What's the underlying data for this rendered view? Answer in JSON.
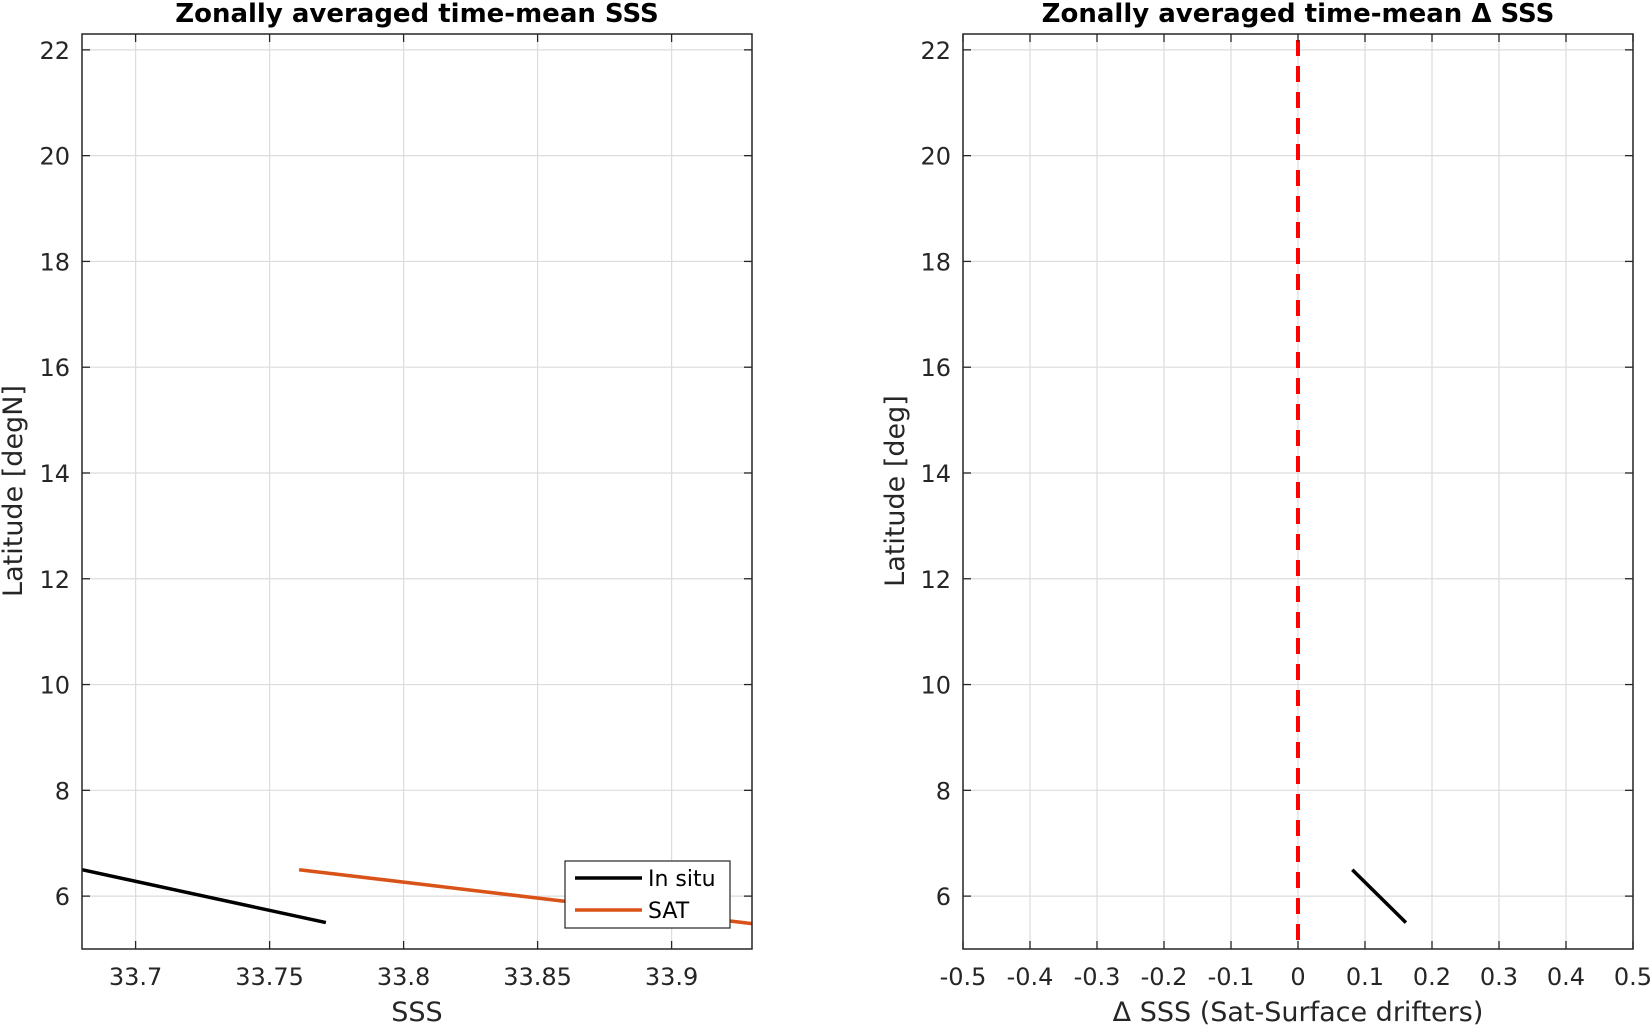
{
  "chart_data": [
    {
      "type": "line",
      "title": "Zonally averaged time-mean SSS",
      "xlabel": "SSS",
      "ylabel": "Latitude [degN]",
      "xlim": [
        33.68,
        33.93
      ],
      "ylim": [
        5,
        22.3
      ],
      "xticks": [
        33.7,
        33.75,
        33.8,
        33.85,
        33.9
      ],
      "xtick_labels": [
        "33.7",
        "33.75",
        "33.8",
        "33.85",
        "33.9"
      ],
      "yticks": [
        6,
        8,
        10,
        12,
        14,
        16,
        18,
        20,
        22
      ],
      "ytick_labels": [
        "6",
        "8",
        "10",
        "12",
        "14",
        "16",
        "18",
        "20",
        "22"
      ],
      "grid": true,
      "legend": "bottom-right",
      "series": [
        {
          "name": "In situ",
          "color": "#000000",
          "x": [
            33.68,
            33.771
          ],
          "y": [
            6.5,
            5.5
          ]
        },
        {
          "name": "SAT",
          "color": "#d95319",
          "x": [
            33.761,
            33.93
          ],
          "y": [
            6.5,
            5.48
          ]
        }
      ]
    },
    {
      "type": "line",
      "title": "Zonally averaged time-mean Δ SSS",
      "xlabel": "Δ SSS (Sat-Surface drifters)",
      "ylabel": "Latitude [deg]",
      "xlim": [
        -0.5,
        0.5
      ],
      "ylim": [
        5,
        22.3
      ],
      "xticks": [
        -0.5,
        -0.4,
        -0.3,
        -0.2,
        -0.1,
        0,
        0.1,
        0.2,
        0.3,
        0.4,
        0.5
      ],
      "xtick_labels": [
        "-0.5",
        "-0.4",
        "-0.3",
        "-0.2",
        "-0.1",
        "0",
        "0.1",
        "0.2",
        "0.3",
        "0.4",
        "0.5"
      ],
      "yticks": [
        6,
        8,
        10,
        12,
        14,
        16,
        18,
        20,
        22
      ],
      "ytick_labels": [
        "6",
        "8",
        "10",
        "12",
        "14",
        "16",
        "18",
        "20",
        "22"
      ],
      "grid": true,
      "reference_line": {
        "x": 0,
        "color": "#ff0000",
        "style": "dashed"
      },
      "series": [
        {
          "color": "#000000",
          "x": [
            0.081,
            0.161
          ],
          "y": [
            6.5,
            5.5
          ]
        }
      ]
    }
  ]
}
